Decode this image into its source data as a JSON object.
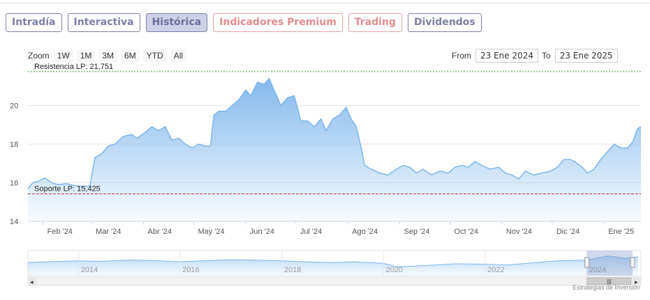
{
  "tabs": [
    {
      "label": "Intradía",
      "state": "normal"
    },
    {
      "label": "Interactiva",
      "state": "normal"
    },
    {
      "label": "Histórica",
      "state": "active"
    },
    {
      "label": "Indicadores Premium",
      "state": "premium"
    },
    {
      "label": "Trading",
      "state": "premium"
    },
    {
      "label": "Dividendos",
      "state": "normal"
    }
  ],
  "zoom": {
    "label": "Zoom",
    "buttons": [
      "1W",
      "1M",
      "3M",
      "6M",
      "YTD",
      "All"
    ]
  },
  "range": {
    "from_label": "From",
    "from_value": "23 Ene 2024",
    "to_label": "To",
    "to_value": "23 Ene 2025"
  },
  "colors": {
    "line": "#7cb5ec",
    "area_top": "#7cb5ec",
    "resistance": "#2ca02c",
    "support": "#c9302c",
    "tab_border": "#7d7fa8",
    "premium": "#e28d8d"
  },
  "chart_data": {
    "type": "area",
    "title": "",
    "xlabel": "",
    "ylabel": "",
    "ylim": [
      14,
      22
    ],
    "yticks": [
      14,
      16,
      18,
      20
    ],
    "xticks": [
      "Feb '24",
      "Mar '24",
      "Abr '24",
      "May '24",
      "Jun '24",
      "Jul '24",
      "Ago '24",
      "Sep '24",
      "Oct '24",
      "Nov '24",
      "Dic '24",
      "Ene '25"
    ],
    "grid": true,
    "points": [
      [
        "2024-01-23",
        15.7
      ],
      [
        "2024-01-26",
        16.0
      ],
      [
        "2024-01-30",
        16.1
      ],
      [
        "2024-02-02",
        16.25
      ],
      [
        "2024-02-06",
        16.0
      ],
      [
        "2024-02-10",
        15.9
      ],
      [
        "2024-02-15",
        15.95
      ],
      [
        "2024-02-20",
        15.85
      ],
      [
        "2024-02-26",
        15.8
      ],
      [
        "2024-02-29",
        15.85
      ],
      [
        "2024-03-03",
        17.3
      ],
      [
        "2024-03-07",
        17.5
      ],
      [
        "2024-03-11",
        17.9
      ],
      [
        "2024-03-15",
        18.0
      ],
      [
        "2024-03-20",
        18.4
      ],
      [
        "2024-03-25",
        18.5
      ],
      [
        "2024-03-28",
        18.3
      ],
      [
        "2024-04-02",
        18.6
      ],
      [
        "2024-04-06",
        18.9
      ],
      [
        "2024-04-10",
        18.7
      ],
      [
        "2024-04-14",
        18.9
      ],
      [
        "2024-04-18",
        18.2
      ],
      [
        "2024-04-22",
        18.3
      ],
      [
        "2024-04-26",
        18.0
      ],
      [
        "2024-04-30",
        17.8
      ],
      [
        "2024-05-04",
        18.0
      ],
      [
        "2024-05-08",
        17.9
      ],
      [
        "2024-05-11",
        17.9
      ],
      [
        "2024-05-13",
        19.5
      ],
      [
        "2024-05-16",
        19.7
      ],
      [
        "2024-05-20",
        19.7
      ],
      [
        "2024-05-24",
        20.0
      ],
      [
        "2024-05-28",
        20.3
      ],
      [
        "2024-06-01",
        20.8
      ],
      [
        "2024-06-04",
        20.5
      ],
      [
        "2024-06-08",
        21.2
      ],
      [
        "2024-06-12",
        21.1
      ],
      [
        "2024-06-15",
        21.4
      ],
      [
        "2024-06-18",
        20.8
      ],
      [
        "2024-06-22",
        20.0
      ],
      [
        "2024-06-26",
        20.4
      ],
      [
        "2024-06-30",
        20.5
      ],
      [
        "2024-07-04",
        19.2
      ],
      [
        "2024-07-08",
        19.2
      ],
      [
        "2024-07-12",
        18.9
      ],
      [
        "2024-07-16",
        19.3
      ],
      [
        "2024-07-19",
        18.7
      ],
      [
        "2024-07-23",
        19.3
      ],
      [
        "2024-07-27",
        19.5
      ],
      [
        "2024-07-31",
        19.9
      ],
      [
        "2024-08-03",
        19.3
      ],
      [
        "2024-08-06",
        18.9
      ],
      [
        "2024-08-09",
        17.8
      ],
      [
        "2024-08-11",
        16.9
      ],
      [
        "2024-08-15",
        16.7
      ],
      [
        "2024-08-20",
        16.5
      ],
      [
        "2024-08-25",
        16.4
      ],
      [
        "2024-08-30",
        16.7
      ],
      [
        "2024-09-03",
        16.9
      ],
      [
        "2024-09-07",
        16.8
      ],
      [
        "2024-09-11",
        16.5
      ],
      [
        "2024-09-15",
        16.7
      ],
      [
        "2024-09-20",
        16.4
      ],
      [
        "2024-09-25",
        16.6
      ],
      [
        "2024-09-30",
        16.5
      ],
      [
        "2024-10-04",
        16.8
      ],
      [
        "2024-10-08",
        16.9
      ],
      [
        "2024-10-12",
        16.8
      ],
      [
        "2024-10-16",
        17.1
      ],
      [
        "2024-10-20",
        16.9
      ],
      [
        "2024-10-25",
        16.7
      ],
      [
        "2024-10-30",
        16.8
      ],
      [
        "2024-11-03",
        16.5
      ],
      [
        "2024-11-07",
        16.4
      ],
      [
        "2024-11-11",
        16.2
      ],
      [
        "2024-11-15",
        16.6
      ],
      [
        "2024-11-20",
        16.4
      ],
      [
        "2024-11-25",
        16.5
      ],
      [
        "2024-11-30",
        16.6
      ],
      [
        "2024-12-04",
        16.8
      ],
      [
        "2024-12-08",
        17.2
      ],
      [
        "2024-12-12",
        17.2
      ],
      [
        "2024-12-16",
        17.0
      ],
      [
        "2024-12-19",
        16.8
      ],
      [
        "2024-12-22",
        16.5
      ],
      [
        "2024-12-26",
        16.7
      ],
      [
        "2024-12-30",
        17.2
      ],
      [
        "2025-01-03",
        17.6
      ],
      [
        "2025-01-07",
        18.0
      ],
      [
        "2025-01-11",
        17.8
      ],
      [
        "2025-01-15",
        17.8
      ],
      [
        "2025-01-18",
        18.1
      ],
      [
        "2025-01-21",
        18.8
      ],
      [
        "2025-01-23",
        18.9
      ]
    ],
    "annotations": [
      {
        "label": "Resistencia LP: 21,751",
        "value": 21.751,
        "style": "dotted",
        "color": "#2ca02c"
      },
      {
        "label": "Soporte LP: 15,425",
        "value": 15.425,
        "style": "dashed",
        "color": "#c9302c"
      }
    ],
    "navigator": {
      "years": [
        "2014",
        "2016",
        "2018",
        "2020",
        "2022",
        "2024"
      ],
      "points": [
        [
          "2013-01",
          0.45
        ],
        [
          "2013-06",
          0.5
        ],
        [
          "2014-01",
          0.55
        ],
        [
          "2014-06",
          0.52
        ],
        [
          "2015-01",
          0.6
        ],
        [
          "2015-06",
          0.58
        ],
        [
          "2016-01",
          0.5
        ],
        [
          "2016-06",
          0.55
        ],
        [
          "2017-01",
          0.62
        ],
        [
          "2017-06",
          0.6
        ],
        [
          "2018-01",
          0.55
        ],
        [
          "2018-06",
          0.5
        ],
        [
          "2019-01",
          0.45
        ],
        [
          "2019-06",
          0.5
        ],
        [
          "2020-01",
          0.4
        ],
        [
          "2020-04",
          0.2
        ],
        [
          "2020-09",
          0.25
        ],
        [
          "2021-01",
          0.3
        ],
        [
          "2021-06",
          0.38
        ],
        [
          "2022-01",
          0.35
        ],
        [
          "2022-06",
          0.3
        ],
        [
          "2023-01",
          0.45
        ],
        [
          "2023-06",
          0.55
        ],
        [
          "2024-01",
          0.6
        ],
        [
          "2024-06",
          0.85
        ],
        [
          "2024-10",
          0.7
        ],
        [
          "2025-01",
          0.8
        ]
      ],
      "selected_from": "2024-01-23",
      "selected_to": "2025-01-23"
    }
  },
  "credit": "Estrategias de Inversión"
}
